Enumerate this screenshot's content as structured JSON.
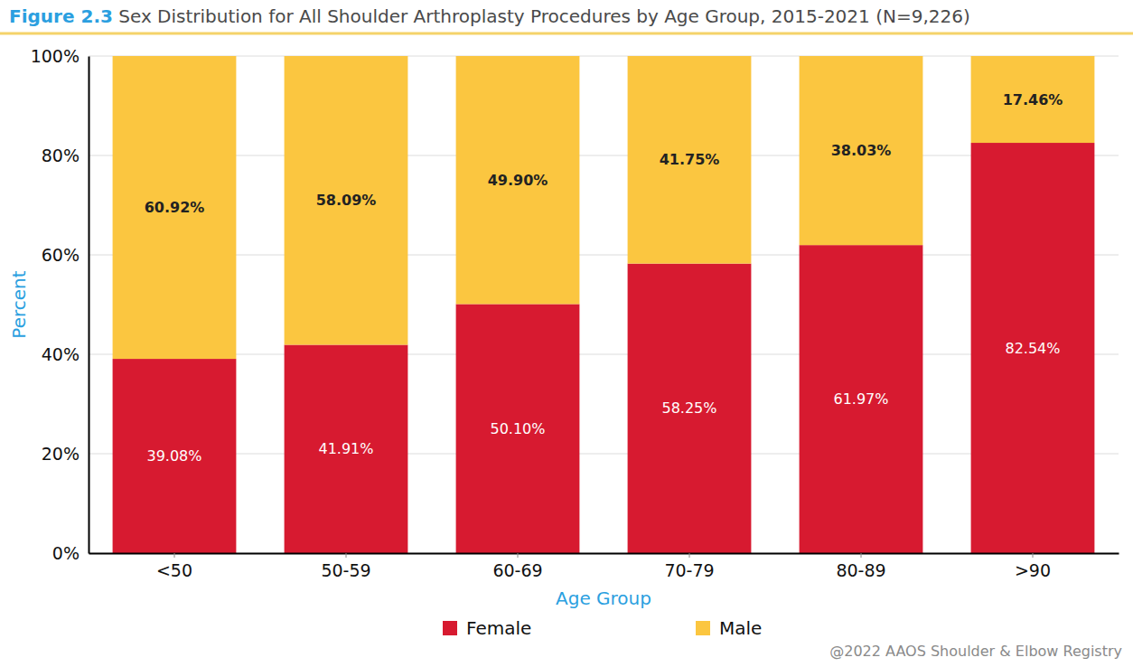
{
  "chart_data": {
    "type": "bar",
    "title": "Sex Distribution for All Shoulder Arthroplasty Procedures by Age Group, 2015-2021 (N=9,226)",
    "annotations": [
      "Figure 2.3",
      "@2022 AAOS Shoulder & Elbow Registry"
    ],
    "x_label": "Age Group",
    "y_label": "Percent",
    "categories": [
      "<50",
      "50-59",
      "60-69",
      "70-79",
      "80-89",
      ">90"
    ],
    "series": [
      {
        "name": "Female",
        "color": "#d71a30",
        "values": [
          39.08,
          41.91,
          50.1,
          58.25,
          61.97,
          82.54
        ],
        "value_labels": [
          "39.08%",
          "41.91%",
          "50.10%",
          "58.25%",
          "61.97%",
          "82.54%"
        ]
      },
      {
        "name": "Male",
        "color": "#fbc640",
        "values": [
          60.92,
          58.09,
          49.9,
          41.75,
          38.03,
          17.46
        ],
        "value_labels": [
          "60.92%",
          "58.09%",
          "49.90%",
          "41.75%",
          "38.03%",
          "17.46%"
        ]
      }
    ],
    "ylim": [
      0,
      100
    ],
    "yticks": [
      {
        "value": 0,
        "label": "0%"
      },
      {
        "value": 20,
        "label": "20%"
      },
      {
        "value": 40,
        "label": "40%"
      },
      {
        "value": 60,
        "label": "60%"
      },
      {
        "value": 80,
        "label": "80%"
      },
      {
        "value": 100,
        "label": "100%"
      }
    ],
    "stacked": true,
    "grid": true,
    "data_labels": true,
    "legend": "bottom"
  }
}
